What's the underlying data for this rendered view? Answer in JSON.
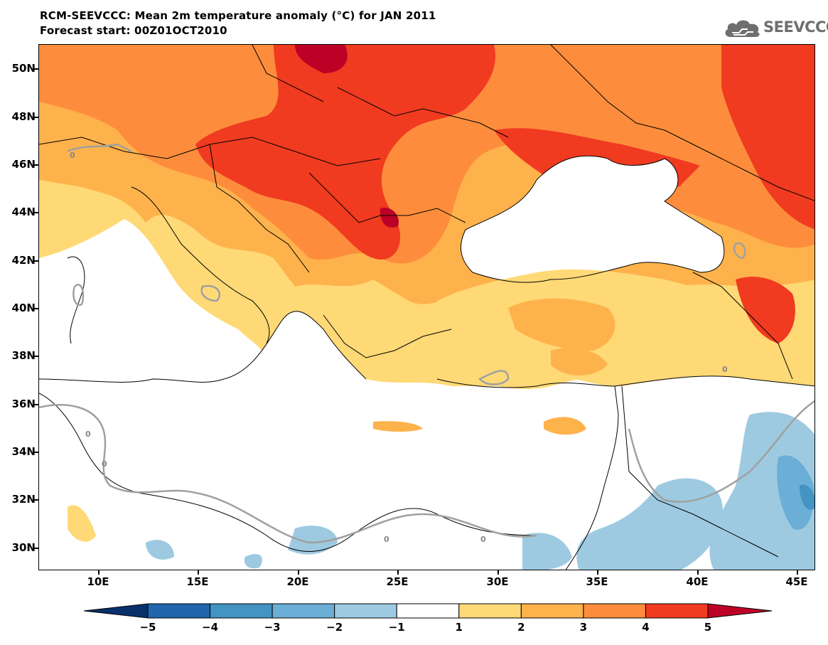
{
  "header": {
    "title": "RCM-SEEVCCC: Mean 2m temperature anomaly (°C) for JAN 2011",
    "subtitle": "Forecast start: 00Z01OCT2010"
  },
  "logo": {
    "text": "SEEVCCC",
    "icon": "cloud-logo-icon",
    "color": "#6e6e6e"
  },
  "map": {
    "lat_labels": [
      "50N",
      "48N",
      "46N",
      "44N",
      "42N",
      "40N",
      "38N",
      "36N",
      "34N",
      "32N",
      "30N"
    ],
    "lon_labels": [
      "10E",
      "15E",
      "20E",
      "25E",
      "30E",
      "35E",
      "40E",
      "45E"
    ],
    "contour_labels": [
      "0",
      "0",
      "0",
      "0",
      "0",
      "0"
    ],
    "lat_range": [
      29,
      51
    ],
    "lon_range": [
      7,
      46
    ]
  },
  "legend": {
    "tick_labels": [
      "−5",
      "−4",
      "−3",
      "−2",
      "−1",
      "1",
      "2",
      "3",
      "4",
      "5"
    ],
    "colors": [
      "#08306b",
      "#2166ac",
      "#4393c3",
      "#6baed6",
      "#9ecae1",
      "#ffffff",
      "#fed976",
      "#feb24c",
      "#fd8d3c",
      "#f03b20",
      "#bd0026"
    ]
  }
}
